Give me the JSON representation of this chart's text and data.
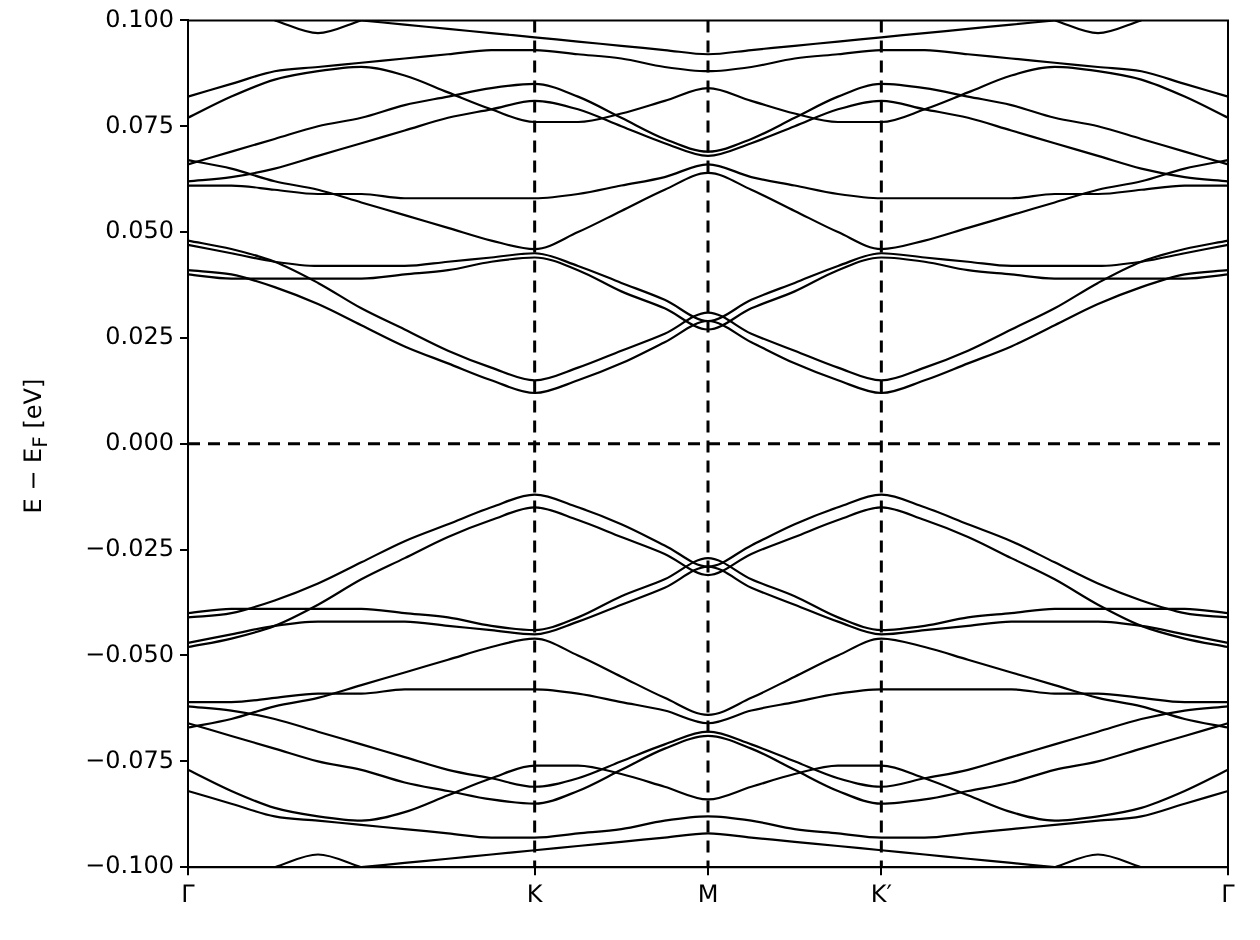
{
  "chart_data": {
    "type": "line",
    "ylabel": "E − E$_{F}$ [eV]",
    "categories": [
      "Γ",
      null,
      null,
      null,
      null,
      null,
      null,
      null,
      "K",
      null,
      null,
      null,
      "M",
      null,
      null,
      null,
      "K′",
      null,
      null,
      null,
      null,
      null,
      null,
      null,
      "Γ"
    ],
    "ylim": [
      -0.1,
      0.1
    ],
    "yticks": [
      {
        "value": -0.1,
        "label": "−0.100"
      },
      {
        "value": -0.075,
        "label": "−0.075"
      },
      {
        "value": -0.05,
        "label": "−0.050"
      },
      {
        "value": -0.025,
        "label": "−0.025"
      },
      {
        "value": 0,
        "label": "0.000"
      },
      {
        "value": 0.025,
        "label": "0.025"
      },
      {
        "value": 0.05,
        "label": "0.050"
      },
      {
        "value": 0.075,
        "label": "0.075"
      },
      {
        "value": 0.1,
        "label": "0.100"
      }
    ],
    "grid": false,
    "legend": false,
    "marker": "none",
    "line_style": "solid",
    "ref_lines": [
      {
        "axis": "y",
        "value": 0,
        "color": "#000000",
        "line_style": "dashed"
      },
      {
        "axis": "x",
        "value": "K",
        "color": "#000000",
        "line_style": "dashed"
      },
      {
        "axis": "x",
        "value": "M",
        "color": "#000000",
        "line_style": "dashed"
      },
      {
        "axis": "x",
        "value": "K′",
        "color": "#000000",
        "line_style": "dashed"
      }
    ],
    "series": [
      {
        "color": "#000000",
        "values": [
          0.041,
          0.04,
          0.037,
          0.033,
          0.028,
          0.023,
          0.019,
          0.015,
          0.012,
          0.015,
          0.019,
          0.024,
          0.029,
          0.024,
          0.019,
          0.015,
          0.012,
          0.015,
          0.019,
          0.023,
          0.028,
          0.033,
          0.037,
          0.04,
          0.041
        ]
      },
      {
        "color": "#000000",
        "values": [
          0.048,
          0.046,
          0.043,
          0.038,
          0.032,
          0.027,
          0.022,
          0.018,
          0.015,
          0.018,
          0.022,
          0.026,
          0.031,
          0.026,
          0.022,
          0.018,
          0.015,
          0.018,
          0.022,
          0.027,
          0.032,
          0.038,
          0.043,
          0.046,
          0.048
        ]
      },
      {
        "color": "#000000",
        "values": [
          0.04,
          0.039,
          0.039,
          0.039,
          0.039,
          0.04,
          0.041,
          0.043,
          0.044,
          0.041,
          0.036,
          0.032,
          0.027,
          0.032,
          0.036,
          0.041,
          0.044,
          0.043,
          0.041,
          0.04,
          0.039,
          0.039,
          0.039,
          0.039,
          0.04
        ]
      },
      {
        "color": "#000000",
        "values": [
          0.047,
          0.045,
          0.043,
          0.042,
          0.042,
          0.042,
          0.043,
          0.044,
          0.045,
          0.042,
          0.038,
          0.034,
          0.029,
          0.034,
          0.038,
          0.042,
          0.045,
          0.044,
          0.043,
          0.042,
          0.042,
          0.042,
          0.043,
          0.045,
          0.047
        ]
      },
      {
        "color": "#000000",
        "values": [
          0.061,
          0.061,
          0.06,
          0.059,
          0.059,
          0.058,
          0.058,
          0.058,
          0.058,
          0.059,
          0.061,
          0.063,
          0.066,
          0.063,
          0.061,
          0.059,
          0.058,
          0.058,
          0.058,
          0.058,
          0.059,
          0.059,
          0.06,
          0.061,
          0.061
        ]
      },
      {
        "color": "#000000",
        "values": [
          0.067,
          0.065,
          0.062,
          0.06,
          0.057,
          0.054,
          0.051,
          0.048,
          0.046,
          0.05,
          0.055,
          0.06,
          0.064,
          0.06,
          0.055,
          0.05,
          0.046,
          0.048,
          0.051,
          0.054,
          0.057,
          0.06,
          0.062,
          0.065,
          0.067
        ]
      },
      {
        "color": "#000000",
        "values": [
          0.062,
          0.063,
          0.065,
          0.068,
          0.071,
          0.074,
          0.077,
          0.079,
          0.081,
          0.079,
          0.075,
          0.071,
          0.068,
          0.071,
          0.075,
          0.079,
          0.081,
          0.079,
          0.077,
          0.074,
          0.071,
          0.068,
          0.065,
          0.063,
          0.062
        ]
      },
      {
        "color": "#000000",
        "values": [
          0.066,
          0.069,
          0.072,
          0.075,
          0.077,
          0.08,
          0.082,
          0.084,
          0.085,
          0.082,
          0.077,
          0.072,
          0.069,
          0.072,
          0.077,
          0.082,
          0.085,
          0.084,
          0.082,
          0.08,
          0.077,
          0.075,
          0.072,
          0.069,
          0.066
        ]
      },
      {
        "color": "#000000",
        "values": [
          0.077,
          0.082,
          0.086,
          0.088,
          0.089,
          0.087,
          0.083,
          0.079,
          0.076,
          0.076,
          0.078,
          0.081,
          0.084,
          0.081,
          0.078,
          0.076,
          0.076,
          0.079,
          0.083,
          0.087,
          0.089,
          0.088,
          0.086,
          0.082,
          0.077
        ]
      },
      {
        "color": "#000000",
        "values": [
          0.082,
          0.085,
          0.088,
          0.089,
          0.09,
          0.091,
          0.092,
          0.093,
          0.093,
          0.092,
          0.091,
          0.089,
          0.088,
          0.089,
          0.091,
          0.092,
          0.093,
          0.093,
          0.092,
          0.091,
          0.09,
          0.089,
          0.088,
          0.085,
          0.082
        ]
      },
      {
        "color": "#000000",
        "values": [
          null,
          null,
          null,
          null,
          0.1,
          0.099,
          0.098,
          0.097,
          0.096,
          0.095,
          0.094,
          0.093,
          0.092,
          0.093,
          0.094,
          0.095,
          0.096,
          0.097,
          0.098,
          0.099,
          0.1,
          null,
          null,
          null,
          null
        ]
      },
      {
        "color": "#000000",
        "values": [
          null,
          null,
          0.1,
          0.097,
          0.1,
          null,
          null,
          null,
          null,
          null,
          null,
          null,
          null,
          null,
          null,
          null,
          null,
          null,
          null,
          null,
          null,
          null,
          null,
          null,
          null
        ]
      },
      {
        "color": "#000000",
        "values": [
          null,
          null,
          null,
          null,
          null,
          null,
          null,
          null,
          null,
          null,
          null,
          null,
          null,
          null,
          null,
          null,
          null,
          null,
          null,
          null,
          0.1,
          0.097,
          0.1,
          null,
          null
        ]
      },
      {
        "color": "#000000",
        "values": [
          -0.041,
          -0.04,
          -0.037,
          -0.033,
          -0.028,
          -0.023,
          -0.019,
          -0.015,
          -0.012,
          -0.015,
          -0.019,
          -0.024,
          -0.029,
          -0.024,
          -0.019,
          -0.015,
          -0.012,
          -0.015,
          -0.019,
          -0.023,
          -0.028,
          -0.033,
          -0.037,
          -0.04,
          -0.041
        ]
      },
      {
        "color": "#000000",
        "values": [
          -0.048,
          -0.046,
          -0.043,
          -0.038,
          -0.032,
          -0.027,
          -0.022,
          -0.018,
          -0.015,
          -0.018,
          -0.022,
          -0.026,
          -0.031,
          -0.026,
          -0.022,
          -0.018,
          -0.015,
          -0.018,
          -0.022,
          -0.027,
          -0.032,
          -0.038,
          -0.043,
          -0.046,
          -0.048
        ]
      },
      {
        "color": "#000000",
        "values": [
          -0.04,
          -0.039,
          -0.039,
          -0.039,
          -0.039,
          -0.04,
          -0.041,
          -0.043,
          -0.044,
          -0.041,
          -0.036,
          -0.032,
          -0.027,
          -0.032,
          -0.036,
          -0.041,
          -0.044,
          -0.043,
          -0.041,
          -0.04,
          -0.039,
          -0.039,
          -0.039,
          -0.039,
          -0.04
        ]
      },
      {
        "color": "#000000",
        "values": [
          -0.047,
          -0.045,
          -0.043,
          -0.042,
          -0.042,
          -0.042,
          -0.043,
          -0.044,
          -0.045,
          -0.042,
          -0.038,
          -0.034,
          -0.029,
          -0.034,
          -0.038,
          -0.042,
          -0.045,
          -0.044,
          -0.043,
          -0.042,
          -0.042,
          -0.042,
          -0.043,
          -0.045,
          -0.047
        ]
      },
      {
        "color": "#000000",
        "values": [
          -0.061,
          -0.061,
          -0.06,
          -0.059,
          -0.059,
          -0.058,
          -0.058,
          -0.058,
          -0.058,
          -0.059,
          -0.061,
          -0.063,
          -0.066,
          -0.063,
          -0.061,
          -0.059,
          -0.058,
          -0.058,
          -0.058,
          -0.058,
          -0.059,
          -0.059,
          -0.06,
          -0.061,
          -0.061
        ]
      },
      {
        "color": "#000000",
        "values": [
          -0.067,
          -0.065,
          -0.062,
          -0.06,
          -0.057,
          -0.054,
          -0.051,
          -0.048,
          -0.046,
          -0.05,
          -0.055,
          -0.06,
          -0.064,
          -0.06,
          -0.055,
          -0.05,
          -0.046,
          -0.048,
          -0.051,
          -0.054,
          -0.057,
          -0.06,
          -0.062,
          -0.065,
          -0.067
        ]
      },
      {
        "color": "#000000",
        "values": [
          -0.062,
          -0.063,
          -0.065,
          -0.068,
          -0.071,
          -0.074,
          -0.077,
          -0.079,
          -0.081,
          -0.079,
          -0.075,
          -0.071,
          -0.068,
          -0.071,
          -0.075,
          -0.079,
          -0.081,
          -0.079,
          -0.077,
          -0.074,
          -0.071,
          -0.068,
          -0.065,
          -0.063,
          -0.062
        ]
      },
      {
        "color": "#000000",
        "values": [
          -0.066,
          -0.069,
          -0.072,
          -0.075,
          -0.077,
          -0.08,
          -0.082,
          -0.084,
          -0.085,
          -0.082,
          -0.077,
          -0.072,
          -0.069,
          -0.072,
          -0.077,
          -0.082,
          -0.085,
          -0.084,
          -0.082,
          -0.08,
          -0.077,
          -0.075,
          -0.072,
          -0.069,
          -0.066
        ]
      },
      {
        "color": "#000000",
        "values": [
          -0.077,
          -0.082,
          -0.086,
          -0.088,
          -0.089,
          -0.087,
          -0.083,
          -0.079,
          -0.076,
          -0.076,
          -0.078,
          -0.081,
          -0.084,
          -0.081,
          -0.078,
          -0.076,
          -0.076,
          -0.079,
          -0.083,
          -0.087,
          -0.089,
          -0.088,
          -0.086,
          -0.082,
          -0.077
        ]
      },
      {
        "color": "#000000",
        "values": [
          -0.082,
          -0.085,
          -0.088,
          -0.089,
          -0.09,
          -0.091,
          -0.092,
          -0.093,
          -0.093,
          -0.092,
          -0.091,
          -0.089,
          -0.088,
          -0.089,
          -0.091,
          -0.092,
          -0.093,
          -0.093,
          -0.092,
          -0.091,
          -0.09,
          -0.089,
          -0.088,
          -0.085,
          -0.082
        ]
      },
      {
        "color": "#000000",
        "values": [
          null,
          null,
          null,
          null,
          -0.1,
          -0.099,
          -0.098,
          -0.097,
          -0.096,
          -0.095,
          -0.094,
          -0.093,
          -0.092,
          -0.093,
          -0.094,
          -0.095,
          -0.096,
          -0.097,
          -0.098,
          -0.099,
          -0.1,
          null,
          null,
          null,
          null
        ]
      },
      {
        "color": "#000000",
        "values": [
          null,
          null,
          -0.1,
          -0.097,
          -0.1,
          null,
          null,
          null,
          null,
          null,
          null,
          null,
          null,
          null,
          null,
          null,
          null,
          null,
          null,
          null,
          null,
          null,
          null,
          null,
          null
        ]
      },
      {
        "color": "#000000",
        "values": [
          null,
          null,
          null,
          null,
          null,
          null,
          null,
          null,
          null,
          null,
          null,
          null,
          null,
          null,
          null,
          null,
          null,
          null,
          null,
          null,
          -0.1,
          -0.097,
          -0.1,
          null,
          null
        ]
      }
    ]
  }
}
